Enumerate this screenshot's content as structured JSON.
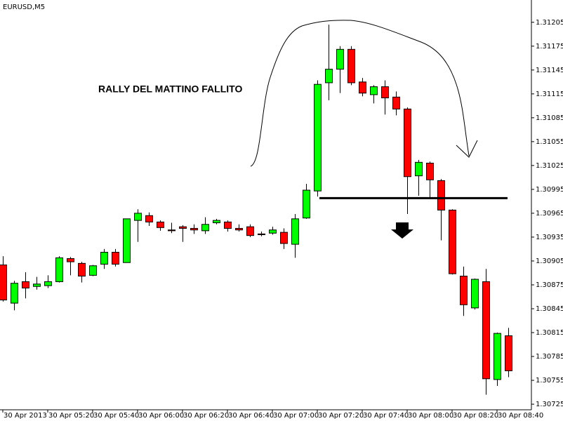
{
  "chart_data": {
    "type": "candlestick",
    "title": "EURUSD,M5",
    "annotation": "RALLY DEL MATTINO FALLITO",
    "categories": [
      "30 Apr 2013",
      null,
      null,
      null,
      "30 Apr 05:20",
      null,
      null,
      null,
      "30 Apr 05:40",
      null,
      null,
      null,
      "30 Apr 06:00",
      null,
      null,
      null,
      "30 Apr 06:20",
      null,
      null,
      null,
      "30 Apr 06:40",
      null,
      null,
      null,
      "30 Apr 07:00",
      null,
      null,
      null,
      "30 Apr 07:20",
      null,
      null,
      null,
      "30 Apr 07:40",
      null,
      null,
      null,
      "30 Apr 08:00",
      null,
      null,
      null,
      "30 Apr 08:20",
      null,
      null,
      null,
      "30 Apr 08:40",
      null
    ],
    "open": [
      1.309,
      1.30852,
      1.30879,
      1.30873,
      1.30874,
      1.30879,
      1.30908,
      1.30902,
      1.30887,
      1.30901,
      1.30916,
      1.30903,
      1.30956,
      1.30962,
      1.30954,
      1.30944,
      1.30948,
      1.30946,
      1.30943,
      1.30953,
      1.30954,
      1.30946,
      1.30948,
      1.30939,
      1.3094,
      1.30941,
      1.30926,
      1.30959,
      1.30993,
      1.31129,
      1.31146,
      1.31171,
      1.3113,
      1.31114,
      1.31124,
      1.31111,
      1.31096,
      1.31012,
      1.31028,
      1.31006,
      1.30969,
      1.30886,
      1.30846,
      1.30879,
      1.30756,
      1.30811
    ],
    "high": [
      1.30911,
      1.3088,
      1.30891,
      1.30885,
      1.30887,
      1.30911,
      1.3091,
      1.30904,
      1.309,
      1.3092,
      1.3092,
      1.30958,
      1.3097,
      1.30966,
      1.30956,
      1.30953,
      1.3095,
      1.30951,
      1.3096,
      1.30958,
      1.30956,
      1.30951,
      1.30951,
      1.30942,
      1.30948,
      1.30946,
      1.30964,
      1.31002,
      1.31132,
      1.31202,
      1.31175,
      1.31175,
      1.31135,
      1.31126,
      1.31132,
      1.31118,
      1.31098,
      1.31032,
      1.3103,
      1.31008,
      1.3097,
      1.30898,
      1.30883,
      1.30895,
      1.30815,
      1.30821
    ],
    "low": [
      1.30854,
      1.30843,
      1.30858,
      1.30869,
      1.30871,
      1.30878,
      1.30887,
      1.30878,
      1.30886,
      1.30895,
      1.30898,
      1.30903,
      1.30929,
      1.30949,
      1.30943,
      1.3094,
      1.30929,
      1.30939,
      1.30939,
      1.30951,
      1.30942,
      1.30942,
      1.30935,
      1.30936,
      1.30938,
      1.3092,
      1.30909,
      1.30958,
      1.30986,
      1.31107,
      1.31116,
      1.31126,
      1.31112,
      1.31103,
      1.31089,
      1.31088,
      1.30964,
      1.30987,
      1.30985,
      1.30931,
      1.30888,
      1.30836,
      1.30844,
      1.30737,
      1.30748,
      1.30759
    ],
    "close": [
      1.30856,
      1.30877,
      1.30871,
      1.30876,
      1.30879,
      1.30909,
      1.30904,
      1.30886,
      1.30899,
      1.30916,
      1.30901,
      1.30958,
      1.30965,
      1.30954,
      1.30947,
      1.30943,
      1.30946,
      1.30944,
      1.30951,
      1.30956,
      1.30946,
      1.30944,
      1.30937,
      1.30938,
      1.30944,
      1.30927,
      1.30958,
      1.30994,
      1.31127,
      1.31146,
      1.31171,
      1.31129,
      1.31116,
      1.31124,
      1.3111,
      1.31096,
      1.31011,
      1.31029,
      1.31007,
      1.30969,
      1.30889,
      1.3085,
      1.30882,
      1.30757,
      1.30814,
      1.30767
    ],
    "up_color": "#00ff00",
    "down_color": "#ff0000",
    "level": 1.30984,
    "ylim": [
      1.30718,
      1.31233
    ],
    "yticks": [
      1.31205,
      1.31175,
      1.31145,
      1.31115,
      1.31085,
      1.31055,
      1.31025,
      1.30995,
      1.30965,
      1.30935,
      1.30905,
      1.30875,
      1.30845,
      1.30815,
      1.30785,
      1.30755,
      1.30725
    ]
  }
}
